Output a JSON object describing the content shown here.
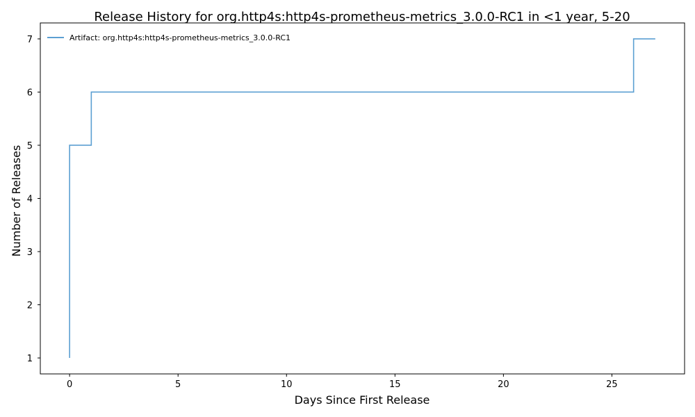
{
  "chart_data": {
    "type": "line",
    "step": "post",
    "title": "Release History for org.http4s:http4s-prometheus-metrics_3.0.0-RC1 in <1 year, 5-20",
    "xlabel": "Days Since First Release",
    "ylabel": "Number of Releases",
    "xlim": [
      -1.35,
      28.35
    ],
    "ylim": [
      0.7,
      7.3
    ],
    "xticks": [
      0,
      5,
      10,
      15,
      20,
      25
    ],
    "yticks": [
      1,
      2,
      3,
      4,
      5,
      6,
      7
    ],
    "grid": false,
    "legend": {
      "position": "top-left"
    },
    "series": [
      {
        "name": "Artifact: org.http4s:http4s-prometheus-metrics_3.0.0-RC1",
        "color": "#5B9FD2",
        "x": [
          0,
          0,
          0,
          0,
          0,
          1,
          26,
          27
        ],
        "y": [
          1,
          2,
          3,
          4,
          5,
          6,
          7,
          7
        ]
      }
    ]
  }
}
